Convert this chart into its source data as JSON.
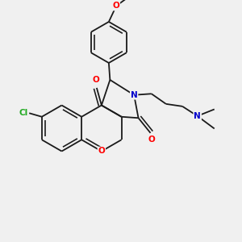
{
  "background_color": "#f0f0f0",
  "figsize": [
    3.0,
    3.0
  ],
  "dpi": 100,
  "bond_color": "#1a1a1a",
  "bond_lw": 1.3,
  "O_color": "#ff0000",
  "N_color": "#0000cc",
  "Cl_color": "#22aa22",
  "font_size": 7.5,
  "xlim": [
    0,
    10
  ],
  "ylim": [
    0,
    10
  ]
}
